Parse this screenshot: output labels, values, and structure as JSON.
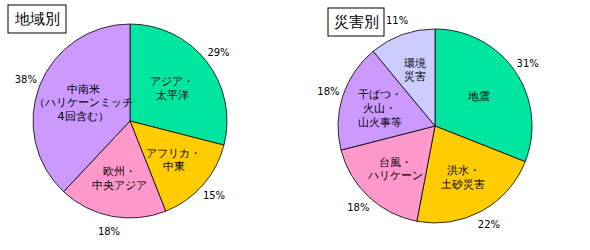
{
  "chart_data": [
    {
      "type": "pie",
      "title": "地域別",
      "categories": [
        "アジア・\n太平洋",
        "アフリカ・\n中東",
        "欧州・\n中央アジア",
        "中南米\n（ハリケーンミッチ\n4回含む）"
      ],
      "values": [
        29,
        15,
        18,
        38
      ],
      "value_labels": [
        "29%",
        "15%",
        "18%",
        "38%"
      ],
      "colors": [
        "#00e6a0",
        "#ffcc00",
        "#ff99cc",
        "#cc99ff"
      ],
      "data_labels": true
    },
    {
      "type": "pie",
      "title": "災害別",
      "categories": [
        "地震",
        "洪水・\n土砂災害",
        "台風・\nハリケーン",
        "干ばつ・\n火山・\n山火事等",
        "環境\n災害"
      ],
      "values": [
        31,
        22,
        18,
        18,
        11
      ],
      "value_labels": [
        "31%",
        "22%",
        "18%",
        "18%",
        "11%"
      ],
      "colors": [
        "#00e6a0",
        "#ffcc00",
        "#ff99cc",
        "#cc99ff",
        "#ccccff"
      ],
      "data_labels": true
    }
  ]
}
